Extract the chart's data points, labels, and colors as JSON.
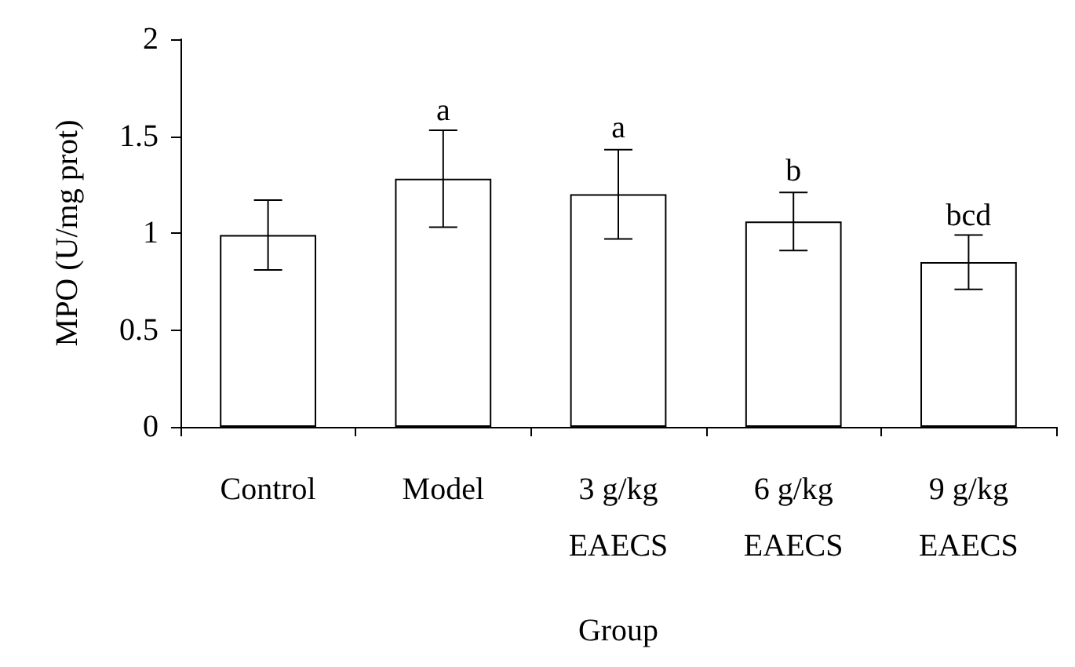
{
  "chart_data": {
    "type": "bar",
    "xlabel": "Group",
    "ylabel": "MPO (U/mg prot)",
    "categories": [
      "Control",
      "Model",
      "3 g/kg\nEAECS",
      "6 g/kg\nEAECS",
      "9 g/kg\nEAECS"
    ],
    "values": [
      0.99,
      1.28,
      1.2,
      1.06,
      0.85
    ],
    "errors": [
      0.18,
      0.25,
      0.23,
      0.15,
      0.14
    ],
    "color": "#ffffff",
    "ylim": [
      0,
      2
    ],
    "yticks": [
      0,
      0.5,
      1,
      1.5,
      2
    ],
    "grid": false,
    "annotations": [
      {
        "text": "a",
        "x": "Model",
        "y": 1.55
      },
      {
        "text": "a",
        "x": "3 g/kg\nEAECS",
        "y": 1.46
      },
      {
        "text": "b",
        "x": "6 g/kg\nEAECS",
        "y": 1.24
      },
      {
        "text": "bcd",
        "x": "9 g/kg\nEAECS",
        "y": 1.01
      }
    ]
  }
}
